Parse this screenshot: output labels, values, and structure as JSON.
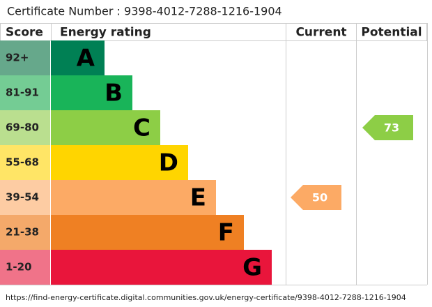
{
  "certificate": "Certificate Number : 9398-4012-7288-1216-1904",
  "headers": [
    "Score",
    "Energy rating",
    "Current",
    "Potential"
  ],
  "bands": [
    {
      "score": "92+",
      "letter": "A",
      "color": "#008054",
      "light": "#66a88b"
    },
    {
      "score": "81-91",
      "letter": "B",
      "color": "#19b459",
      "light": "#74cc94"
    },
    {
      "score": "69-80",
      "letter": "C",
      "color": "#8dce46",
      "light": "#badf8f"
    },
    {
      "score": "55-68",
      "letter": "D",
      "color": "#ffd500",
      "light": "#ffe566"
    },
    {
      "score": "39-54",
      "letter": "E",
      "color": "#fcaa65",
      "light": "#fdcca3"
    },
    {
      "score": "21-38",
      "letter": "F",
      "color": "#ef8023",
      "light": "#f4a96a"
    },
    {
      "score": "1-20",
      "letter": "G",
      "color": "#e9153b",
      "light": "#f07389"
    }
  ],
  "current": 50,
  "potential": 73,
  "url": "https://find-energy-certificate.digital.communities.gov.uk/energy-certificate/9398-4012-7288-1216-1904"
}
